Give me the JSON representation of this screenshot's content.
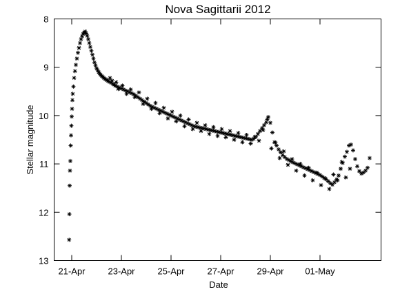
{
  "chart_data": {
    "type": "scatter",
    "title": "Nova Sagittarii 2012",
    "xlabel": "Date",
    "ylabel": "Stellar magnitude",
    "x_unit": "day",
    "xlim": [
      "2012-04-20T07:00",
      "2012-05-03T11:00"
    ],
    "ylim": [
      13,
      8
    ],
    "y_inverted": true,
    "y_ticks": [
      8,
      9,
      10,
      11,
      12,
      13
    ],
    "x_ticks": [
      {
        "date": "2012-04-21",
        "label": "21-Apr"
      },
      {
        "date": "2012-04-23",
        "label": "23-Apr"
      },
      {
        "date": "2012-04-25",
        "label": "25-Apr"
      },
      {
        "date": "2012-04-27",
        "label": "27-Apr"
      },
      {
        "date": "2012-04-29",
        "label": "29-Apr"
      },
      {
        "date": "2012-05-01",
        "label": "01-May"
      }
    ],
    "marker": "asterisk",
    "grid": false,
    "series": [
      {
        "marker_color": "#000000",
        "x": [
          "2012-04-20T21:30",
          "2012-04-20T21:45",
          "2012-04-20T22:00",
          "2012-04-20T22:20",
          "2012-04-20T22:40",
          "2012-04-20T23:00",
          "2012-04-20T23:20",
          "2012-04-20T23:40",
          "2012-04-21T00:00",
          "2012-04-21T00:20",
          "2012-04-21T00:40",
          "2012-04-21T01:00",
          "2012-04-21T01:40",
          "2012-04-21T02:20",
          "2012-04-21T03:10",
          "2012-04-21T04:00",
          "2012-04-21T05:00",
          "2012-04-21T06:00",
          "2012-04-21T07:00",
          "2012-04-21T08:00",
          "2012-04-21T09:00",
          "2012-04-21T10:00",
          "2012-04-21T11:00",
          "2012-04-21T12:00",
          "2012-04-21T13:00",
          "2012-04-21T14:00",
          "2012-04-21T15:00",
          "2012-04-21T16:00",
          "2012-04-21T17:00",
          "2012-04-21T18:00",
          "2012-04-21T19:00",
          "2012-04-21T20:00",
          "2012-04-21T21:00",
          "2012-04-21T22:00",
          "2012-04-21T23:00",
          "2012-04-22T00:00",
          "2012-04-22T01:00",
          "2012-04-22T02:00",
          "2012-04-22T03:00",
          "2012-04-22T04:00",
          "2012-04-22T05:00",
          "2012-04-22T06:00",
          "2012-04-22T07:00",
          "2012-04-22T08:00",
          "2012-04-22T09:00",
          "2012-04-22T10:00",
          "2012-04-22T11:00",
          "2012-04-22T12:00",
          "2012-04-22T14:00",
          "2012-04-22T16:00",
          "2012-04-22T18:00",
          "2012-04-22T20:00",
          "2012-04-22T22:00",
          "2012-04-23T00:00",
          "2012-04-23T02:00",
          "2012-04-23T04:00",
          "2012-04-23T06:00",
          "2012-04-23T08:00",
          "2012-04-23T10:00",
          "2012-04-23T12:00",
          "2012-04-23T14:00",
          "2012-04-23T16:00",
          "2012-04-23T18:00",
          "2012-04-23T20:00",
          "2012-04-23T22:00",
          "2012-04-24T00:00",
          "2012-04-24T02:00",
          "2012-04-24T04:00",
          "2012-04-24T06:00",
          "2012-04-24T08:00",
          "2012-04-24T10:00",
          "2012-04-24T12:00",
          "2012-04-24T14:00",
          "2012-04-24T16:00",
          "2012-04-24T18:00",
          "2012-04-24T20:00",
          "2012-04-24T22:00",
          "2012-04-25T00:00",
          "2012-04-25T02:00",
          "2012-04-25T04:00",
          "2012-04-25T06:00",
          "2012-04-25T08:00",
          "2012-04-25T10:00",
          "2012-04-25T12:00",
          "2012-04-25T14:00",
          "2012-04-25T16:00",
          "2012-04-25T18:00",
          "2012-04-25T20:00",
          "2012-04-25T22:00",
          "2012-04-26T00:00",
          "2012-04-26T02:00",
          "2012-04-26T04:00",
          "2012-04-26T06:00",
          "2012-04-26T08:00",
          "2012-04-26T10:00",
          "2012-04-26T12:00",
          "2012-04-26T14:00",
          "2012-04-26T16:00",
          "2012-04-26T18:00",
          "2012-04-26T20:00",
          "2012-04-26T22:00",
          "2012-04-27T00:00",
          "2012-04-27T02:00",
          "2012-04-27T04:00",
          "2012-04-27T06:00",
          "2012-04-27T08:00",
          "2012-04-27T10:00",
          "2012-04-27T12:00",
          "2012-04-27T14:00",
          "2012-04-27T16:00",
          "2012-04-27T18:00",
          "2012-04-27T20:00",
          "2012-04-27T22:00",
          "2012-04-28T00:00",
          "2012-04-28T02:00",
          "2012-04-28T04:00",
          "2012-04-28T06:00",
          "2012-04-28T08:00",
          "2012-04-28T10:00",
          "2012-04-28T12:00",
          "2012-04-28T14:00",
          "2012-04-28T16:00",
          "2012-04-28T18:00",
          "2012-04-28T20:00",
          "2012-04-28T21:00",
          "2012-04-28T22:00",
          "2012-04-29T00:00",
          "2012-04-29T02:00",
          "2012-04-29T04:00",
          "2012-04-29T06:00",
          "2012-04-29T08:00",
          "2012-04-29T10:00",
          "2012-04-29T12:00",
          "2012-04-29T14:00",
          "2012-04-29T16:00",
          "2012-04-29T18:00",
          "2012-04-29T20:00",
          "2012-04-29T22:00",
          "2012-04-30T00:00",
          "2012-04-30T02:00",
          "2012-04-30T04:00",
          "2012-04-30T06:00",
          "2012-04-30T08:00",
          "2012-04-30T10:00",
          "2012-04-30T12:00",
          "2012-04-30T14:00",
          "2012-04-30T16:00",
          "2012-04-30T18:00",
          "2012-04-30T20:00",
          "2012-04-30T22:00",
          "2012-05-01T00:00",
          "2012-05-01T02:00",
          "2012-05-01T04:00",
          "2012-05-01T06:00",
          "2012-05-01T08:00",
          "2012-05-01T10:00",
          "2012-05-01T12:00",
          "2012-05-01T14:00",
          "2012-05-01T16:00",
          "2012-05-01T18:00",
          "2012-05-01T20:00",
          "2012-05-01T22:00",
          "2012-05-02T00:00",
          "2012-05-02T02:00",
          "2012-05-02T04:00",
          "2012-05-02T06:00",
          "2012-05-02T08:00",
          "2012-05-02T10:00",
          "2012-05-02T12:00",
          "2012-05-02T14:00",
          "2012-05-02T16:00",
          "2012-05-02T18:00",
          "2012-05-02T20:00",
          "2012-05-02T22:00",
          "2012-05-03T00:00"
        ],
        "y": [
          12.57,
          12.04,
          11.45,
          11.14,
          10.94,
          10.62,
          10.41,
          10.21,
          10.02,
          9.86,
          9.68,
          9.55,
          9.4,
          9.22,
          9.08,
          8.95,
          8.82,
          8.7,
          8.6,
          8.5,
          8.42,
          8.36,
          8.31,
          8.28,
          8.26,
          8.3,
          8.35,
          8.42,
          8.5,
          8.58,
          8.66,
          8.74,
          8.82,
          8.9,
          8.96,
          9.02,
          9.06,
          9.1,
          9.13,
          9.16,
          9.18,
          9.2,
          9.22,
          9.24,
          9.25,
          9.27,
          9.28,
          9.3,
          9.32,
          9.35,
          9.38,
          9.4,
          9.42,
          9.44,
          9.46,
          9.48,
          9.5,
          9.52,
          9.54,
          9.56,
          9.59,
          9.62,
          9.65,
          9.68,
          9.71,
          9.74,
          9.77,
          9.8,
          9.82,
          9.84,
          9.86,
          9.88,
          9.9,
          9.92,
          9.94,
          9.96,
          9.98,
          10.0,
          10.02,
          10.04,
          10.06,
          10.08,
          10.1,
          10.12,
          10.14,
          10.16,
          10.18,
          10.2,
          10.22,
          10.23,
          10.24,
          10.25,
          10.26,
          10.27,
          10.28,
          10.29,
          10.3,
          10.31,
          10.32,
          10.33,
          10.34,
          10.35,
          10.36,
          10.37,
          10.38,
          10.39,
          10.4,
          10.41,
          10.42,
          10.43,
          10.44,
          10.45,
          10.46,
          10.47,
          10.48,
          10.49,
          10.5,
          10.48,
          10.44,
          10.38,
          10.32,
          10.26,
          10.2,
          10.14,
          10.08,
          10.03,
          10.15,
          10.35,
          10.55,
          10.62,
          10.7,
          10.76,
          10.82,
          10.86,
          10.9,
          10.92,
          10.95,
          10.97,
          10.99,
          11.01,
          11.03,
          11.05,
          11.07,
          11.09,
          11.11,
          11.13,
          11.15,
          11.17,
          11.19,
          11.21,
          11.23,
          11.26,
          11.29,
          11.32,
          11.36,
          11.4,
          11.43,
          11.38,
          11.32,
          11.24,
          11.1,
          10.98,
          10.85,
          10.75,
          10.62,
          10.6,
          10.72,
          10.9,
          11.05,
          11.15,
          11.2,
          11.18,
          11.14,
          11.08,
          10.88
        ]
      },
      {
        "marker_color": "#000000",
        "x": [
          "2012-04-22T13:00",
          "2012-04-22T15:00",
          "2012-04-22T17:00",
          "2012-04-22T19:00",
          "2012-04-22T21:00",
          "2012-04-23T01:00",
          "2012-04-23T05:00",
          "2012-04-23T09:00",
          "2012-04-23T13:00",
          "2012-04-23T17:00",
          "2012-04-23T21:00",
          "2012-04-24T01:00",
          "2012-04-24T05:00",
          "2012-04-24T09:00",
          "2012-04-24T13:00",
          "2012-04-24T17:00",
          "2012-04-24T21:00",
          "2012-04-25T01:00",
          "2012-04-25T05:00",
          "2012-04-25T09:00",
          "2012-04-25T13:00",
          "2012-04-25T17:00",
          "2012-04-25T21:00",
          "2012-04-26T01:00",
          "2012-04-26T05:00",
          "2012-04-26T09:00",
          "2012-04-26T13:00",
          "2012-04-26T17:00",
          "2012-04-26T21:00",
          "2012-04-27T01:00",
          "2012-04-27T05:00",
          "2012-04-27T09:00",
          "2012-04-27T13:00",
          "2012-04-27T17:00",
          "2012-04-27T21:00",
          "2012-04-28T01:00",
          "2012-04-28T05:00",
          "2012-04-28T09:00",
          "2012-04-28T13:00",
          "2012-04-28T17:00",
          "2012-04-29T01:00",
          "2012-04-29T05:00",
          "2012-04-29T09:00",
          "2012-04-29T13:00",
          "2012-04-29T17:00",
          "2012-04-29T21:00",
          "2012-04-30T01:00",
          "2012-04-30T05:00",
          "2012-04-30T09:00",
          "2012-04-30T13:00",
          "2012-04-30T17:00",
          "2012-04-30T21:00",
          "2012-05-01T01:00",
          "2012-05-01T05:00",
          "2012-05-01T09:00",
          "2012-05-01T13:00",
          "2012-05-01T17:00",
          "2012-05-01T21:00",
          "2012-05-02T01:00",
          "2012-05-02T05:00"
        ],
        "y": [
          9.22,
          9.28,
          9.36,
          9.31,
          9.45,
          9.38,
          9.55,
          9.46,
          9.62,
          9.52,
          9.76,
          9.65,
          9.86,
          9.74,
          9.95,
          9.84,
          10.06,
          9.92,
          10.12,
          10.0,
          10.22,
          10.08,
          10.28,
          10.15,
          10.32,
          10.2,
          10.38,
          10.24,
          10.42,
          10.28,
          10.45,
          10.32,
          10.5,
          10.36,
          10.55,
          10.4,
          10.58,
          10.44,
          10.52,
          10.3,
          10.68,
          10.56,
          10.88,
          10.74,
          11.02,
          10.9,
          11.14,
          11.0,
          11.24,
          11.08,
          11.34,
          11.18,
          11.44,
          11.3,
          11.52,
          11.22,
          11.34,
          10.96,
          11.28,
          11.1
        ]
      }
    ]
  }
}
